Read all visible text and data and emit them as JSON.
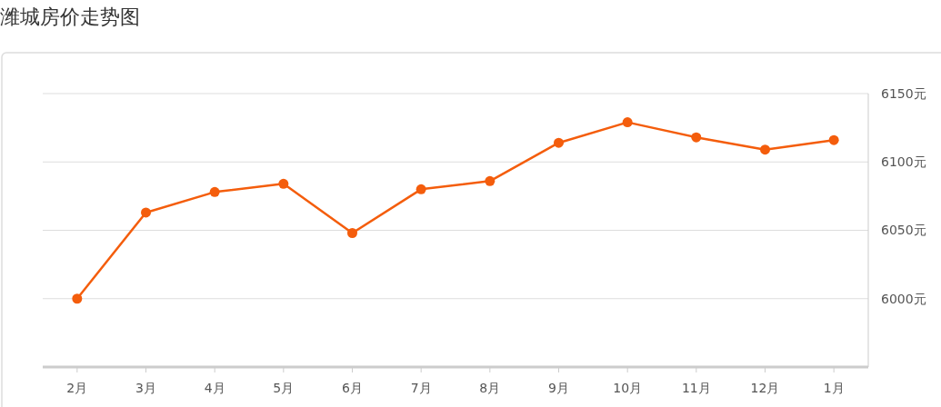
{
  "chart_data": {
    "type": "line",
    "title": "潍城房价走势图",
    "categories": [
      "2月",
      "3月",
      "4月",
      "5月",
      "6月",
      "7月",
      "8月",
      "9月",
      "10月",
      "11月",
      "12月",
      "1月"
    ],
    "series": [
      {
        "color": "#f45d0c",
        "values": [
          6000,
          6063,
          6078,
          6084,
          6048,
          6080,
          6086,
          6114,
          6129,
          6118,
          6109,
          6116
        ]
      }
    ],
    "ylim": [
      5950,
      6150
    ],
    "yticks": [
      {
        "value": 6000,
        "label": "6000元"
      },
      {
        "value": 6050,
        "label": "6050元"
      },
      {
        "value": 6100,
        "label": "6100元"
      },
      {
        "value": 6150,
        "label": "6150元"
      }
    ],
    "grid": "y",
    "marker": "circle",
    "line_style": "solid"
  }
}
